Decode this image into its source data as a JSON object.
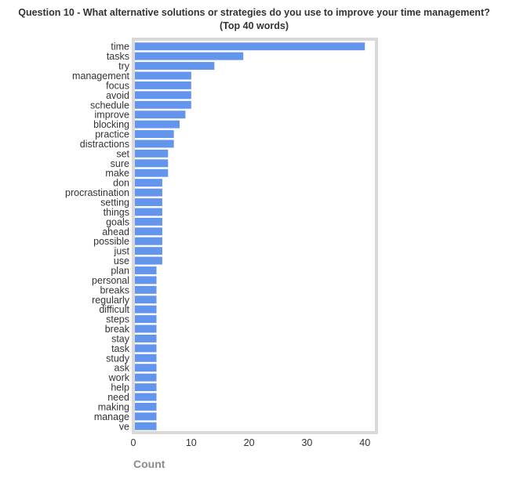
{
  "chart_data": {
    "type": "bar",
    "orientation": "horizontal",
    "title": "Question 10 - What alternative solutions or strategies do you use to improve your time management?",
    "subtitle": "(Top 40 words)",
    "xlabel": "Count",
    "ylabel": "",
    "xlim": [
      0,
      42
    ],
    "xticks": [
      0,
      10,
      20,
      30,
      40
    ],
    "grid": false,
    "categories": [
      "time",
      "tasks",
      "try",
      "management",
      "focus",
      "avoid",
      "schedule",
      "improve",
      "blocking",
      "practice",
      "distractions",
      "set",
      "sure",
      "make",
      "don",
      "procrastination",
      "setting",
      "things",
      "goals",
      "ahead",
      "possible",
      "just",
      "use",
      "plan",
      "personal",
      "breaks",
      "regularly",
      "difficult",
      "steps",
      "break",
      "stay",
      "task",
      "study",
      "ask",
      "work",
      "help",
      "need",
      "making",
      "manage",
      "ve"
    ],
    "values": [
      40,
      19,
      14,
      10,
      10,
      10,
      10,
      9,
      8,
      7,
      7,
      6,
      6,
      6,
      5,
      5,
      5,
      5,
      5,
      5,
      5,
      5,
      5,
      4,
      4,
      4,
      4,
      4,
      4,
      4,
      4,
      4,
      4,
      4,
      4,
      4,
      4,
      4,
      4,
      4
    ],
    "colors": {
      "bar": "#6495ED",
      "frame": "#D9D9D9",
      "title": "#333333",
      "tick_label": "#333333",
      "axis_label": "#8C8C8C"
    }
  }
}
